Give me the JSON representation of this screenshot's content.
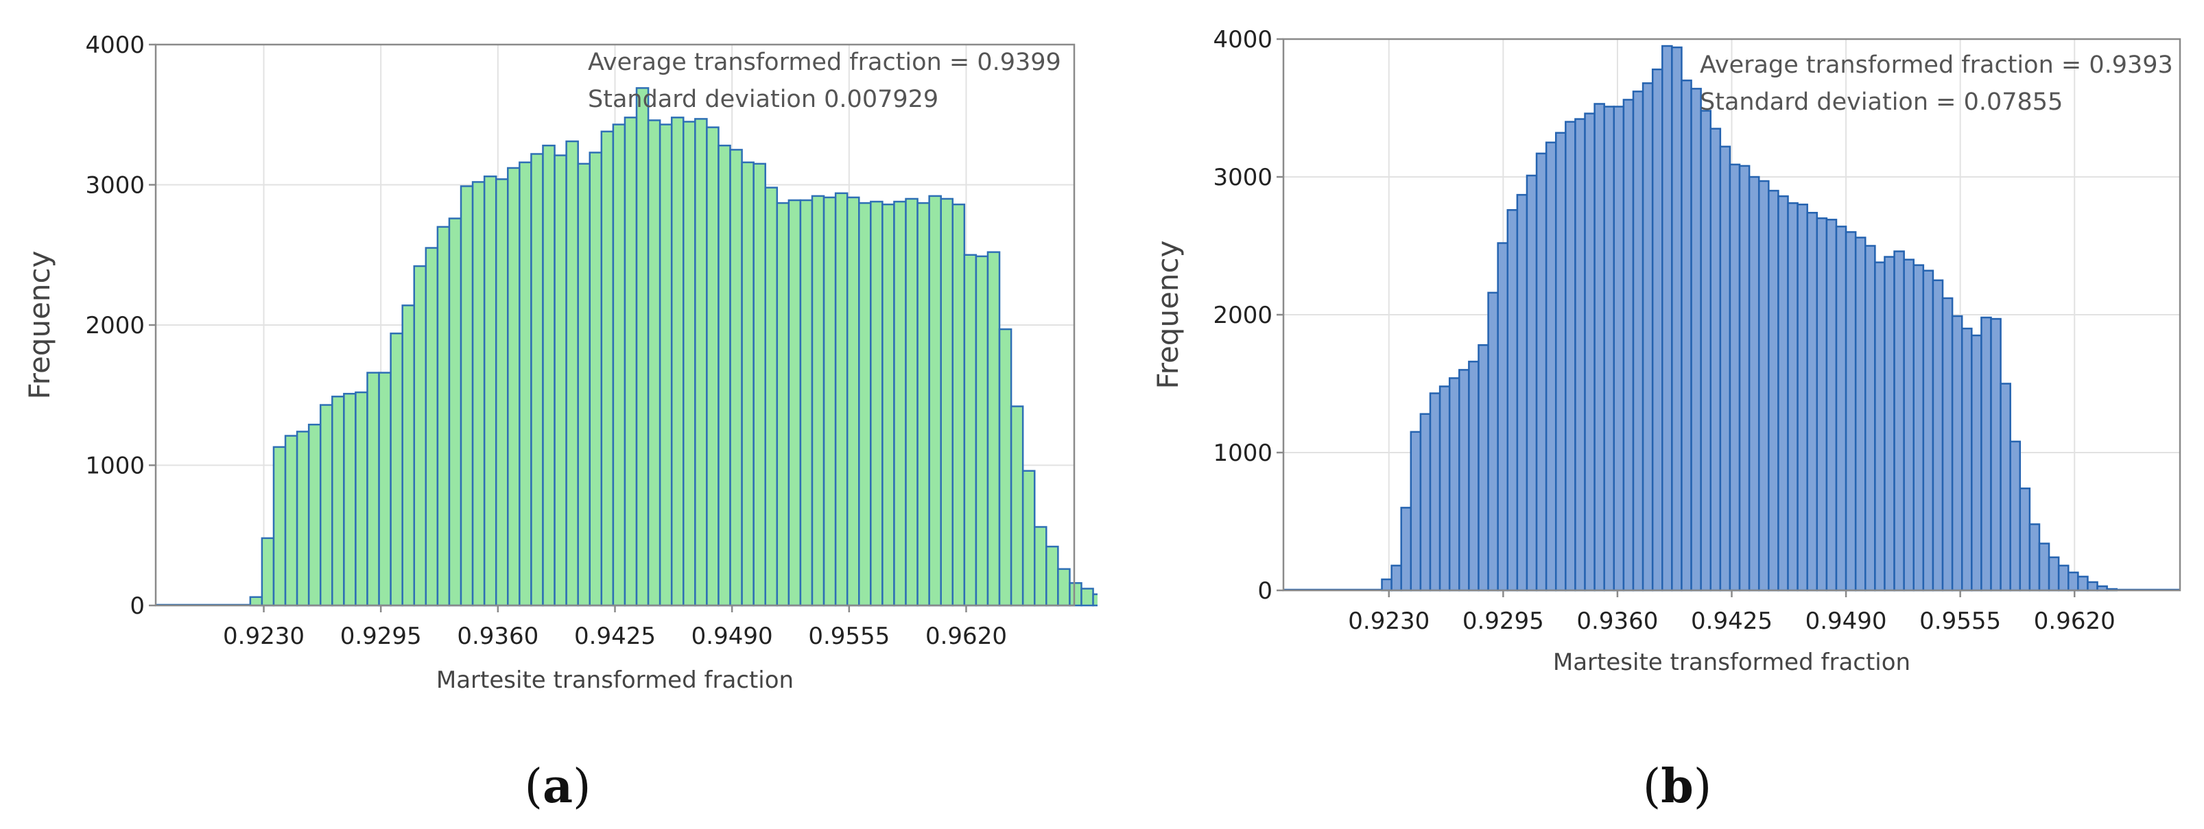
{
  "chart_data": [
    {
      "type": "bar",
      "panel_label": "(a)",
      "panel_letter": "a",
      "xlabel": "Martesite transformed fraction",
      "ylabel": "Frequency",
      "annotations": [
        "Average transformed fraction = 0.9399",
        "Standard deviation 0.007929"
      ],
      "xlim": [
        0.917,
        0.968
      ],
      "ylim": [
        0,
        4000
      ],
      "xticks": [
        "0.9230",
        "0.9295",
        "0.9360",
        "0.9425",
        "0.9490",
        "0.9555",
        "0.9620"
      ],
      "yticks": [
        "0",
        "1000",
        "2000",
        "3000",
        "4000"
      ],
      "grid": true,
      "fill_color": "#98e6a4",
      "edge_color": "#2e6fb5",
      "bin_start": 0.92225,
      "bin_width": 0.00065,
      "values": [
        60,
        480,
        1130,
        1210,
        1240,
        1290,
        1430,
        1490,
        1510,
        1520,
        1660,
        1660,
        1940,
        2140,
        2420,
        2550,
        2700,
        2760,
        2990,
        3020,
        3060,
        3040,
        3120,
        3160,
        3220,
        3280,
        3210,
        3310,
        3150,
        3230,
        3380,
        3430,
        3480,
        3690,
        3460,
        3430,
        3480,
        3450,
        3470,
        3410,
        3280,
        3250,
        3160,
        3150,
        2980,
        2870,
        2890,
        2890,
        2920,
        2910,
        2940,
        2910,
        2870,
        2880,
        2860,
        2880,
        2900,
        2870,
        2920,
        2900,
        2860,
        2500,
        2490,
        2520,
        1970,
        1420,
        960,
        560,
        420,
        260,
        160,
        120,
        80,
        30,
        10
      ]
    },
    {
      "type": "bar",
      "panel_label": "(b)",
      "panel_letter": "b",
      "xlabel": "Martesite transformed fraction",
      "ylabel": "Frequency",
      "annotations": [
        "Average transformed fraction = 0.9393",
        "Standard deviation = 0.07855"
      ],
      "xlim": [
        0.917,
        0.968
      ],
      "ylim": [
        0,
        4000
      ],
      "xticks": [
        "0.9230",
        "0.9295",
        "0.9360",
        "0.9425",
        "0.9490",
        "0.9555",
        "0.9620"
      ],
      "yticks": [
        "0",
        "1000",
        "2000",
        "3000",
        "4000"
      ],
      "grid": true,
      "fill_color": "#7fa3d8",
      "edge_color": "#2563b0",
      "bin_start": 0.9226,
      "bin_width": 0.00055,
      "values": [
        80,
        180,
        600,
        1150,
        1280,
        1430,
        1480,
        1540,
        1600,
        1660,
        1780,
        2160,
        2520,
        2760,
        2870,
        3010,
        3170,
        3250,
        3320,
        3400,
        3420,
        3460,
        3530,
        3510,
        3510,
        3560,
        3620,
        3680,
        3780,
        3950,
        3940,
        3700,
        3640,
        3480,
        3350,
        3220,
        3090,
        3080,
        3000,
        2970,
        2900,
        2860,
        2810,
        2800,
        2740,
        2700,
        2690,
        2640,
        2600,
        2560,
        2500,
        2380,
        2420,
        2460,
        2400,
        2360,
        2320,
        2250,
        2120,
        1990,
        1900,
        1850,
        1980,
        1970,
        1500,
        1080,
        740,
        480,
        340,
        240,
        180,
        130,
        100,
        60,
        30,
        10
      ]
    }
  ]
}
